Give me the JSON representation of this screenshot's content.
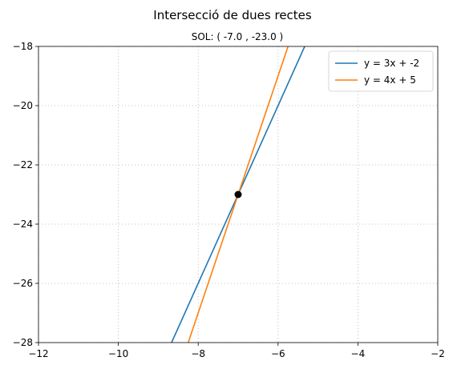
{
  "chart_data": {
    "type": "line",
    "title": "Intersecció de dues rectes",
    "subtitle": "SOL: ( -7.0 , -23.0 )",
    "xlim": [
      -12,
      -2
    ],
    "ylim": [
      -28,
      -18
    ],
    "xticks": [
      -12,
      -10,
      -8,
      -6,
      -4,
      -2
    ],
    "yticks": [
      -28,
      -26,
      -24,
      -22,
      -20,
      -18
    ],
    "xtick_labels": [
      "−12",
      "−10",
      "−8",
      "−6",
      "−4",
      "−2"
    ],
    "ytick_labels": [
      "−28",
      "−26",
      "−24",
      "−22",
      "−20",
      "−18"
    ],
    "grid": true,
    "legend_position": "top-right",
    "series": [
      {
        "name": "y = 3x + -2",
        "color": "#1f77b4",
        "slope": 3,
        "intercept": -2,
        "x": [
          -8.667,
          -5.333
        ],
        "y": [
          -28,
          -18
        ]
      },
      {
        "name": "y = 4x + 5",
        "color": "#ff7f0e",
        "slope": 4,
        "intercept": 5,
        "x": [
          -8.25,
          -5.75
        ],
        "y": [
          -28,
          -18
        ]
      }
    ],
    "points": [
      {
        "x": -7.0,
        "y": -23.0,
        "color": "#000000"
      }
    ]
  }
}
